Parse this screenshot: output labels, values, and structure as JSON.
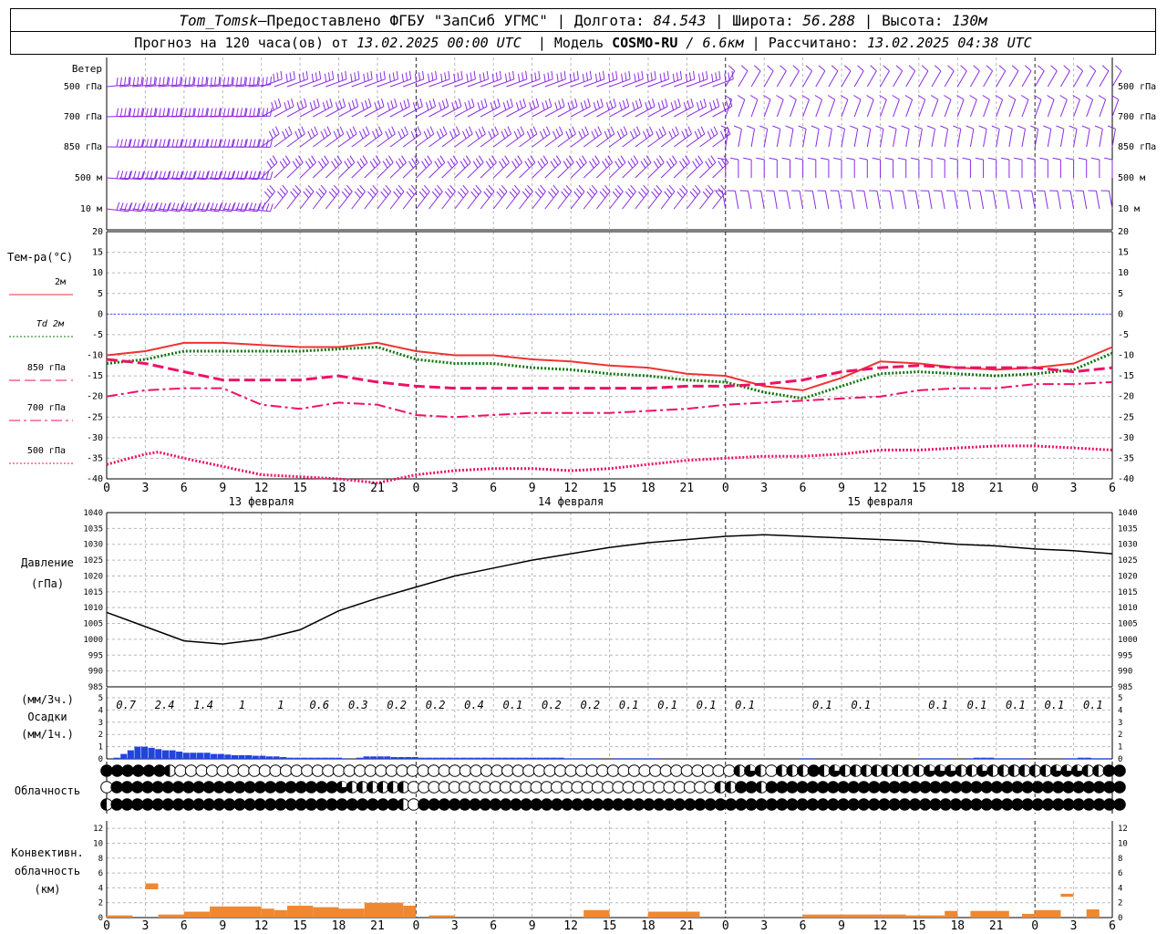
{
  "header": {
    "station": "Tom_Tomsk",
    "dash": " – ",
    "provider": "Предоставлено ФГБУ \"ЗапСиб УГМС\"",
    "lon_label": "Долгота:",
    "lon": "84.543",
    "lat_label": "Широта:",
    "lat": "56.288",
    "alt_label": "Высота:",
    "alt": "130м",
    "forecast_label": "Прогноз на 120 часа(ов) от",
    "forecast_start": "13.02.2025 00:00 UTC",
    "model_label": "Модель",
    "model": "COSMO-RU",
    "resolution": "/ 6.6км",
    "computed_label": "Рассчитано:",
    "computed": "13.02.2025 04:38 UTC",
    "sep": "|"
  },
  "time_axis": {
    "hour_labels": [
      "0",
      "3",
      "6",
      "9",
      "12",
      "15",
      "18",
      "21",
      "0",
      "3",
      "6",
      "9",
      "12",
      "15",
      "18",
      "21",
      "0",
      "3",
      "6",
      "9",
      "12",
      "15",
      "18",
      "21",
      "0",
      "3",
      "6"
    ],
    "day_labels": [
      "13 февраля",
      "14 февраля",
      "15 февраля"
    ]
  },
  "wind": {
    "title": "Ветер",
    "levels": [
      "500 гПа",
      "700 гПа",
      "850 гПа",
      "500 м",
      "10  м"
    ],
    "barb_color": "#8a2be2"
  },
  "temperature": {
    "chart_data": {
      "type": "line",
      "title": "Тем-ра(°C)",
      "x_unit": "hours",
      "y_ticks": [
        20,
        15,
        10,
        5,
        0,
        -5,
        -10,
        -15,
        -20,
        -25,
        -30,
        -35,
        -40
      ],
      "ylim": [
        -40,
        20
      ],
      "grid": true,
      "series": [
        {
          "name": "2м",
          "color": "#ee3333",
          "style": "solid",
          "x": [
            0,
            3,
            6,
            9,
            12,
            15,
            18,
            21,
            24,
            27,
            30,
            33,
            36,
            39,
            42,
            45,
            48,
            51,
            54,
            57,
            60,
            63,
            66,
            69,
            72,
            75,
            78
          ],
          "values": [
            -10,
            -9,
            -7,
            -7,
            -7.5,
            -8,
            -8,
            -7,
            -9,
            -10,
            -10,
            -11,
            -11.5,
            -12.5,
            -13,
            -14.5,
            -15,
            -17.5,
            -18.5,
            -15.5,
            -11.5,
            -12,
            -13,
            -13.5,
            -13,
            -12,
            -8
          ]
        },
        {
          "name": "Td  2м",
          "color": "#117711",
          "style": "dotted",
          "x": [
            0,
            3,
            6,
            9,
            12,
            15,
            18,
            21,
            24,
            27,
            30,
            33,
            36,
            39,
            42,
            45,
            48,
            51,
            54,
            57,
            60,
            63,
            66,
            69,
            72,
            75,
            78
          ],
          "values": [
            -12,
            -11,
            -9,
            -9,
            -9,
            -9,
            -8.5,
            -8,
            -11,
            -12,
            -12,
            -13,
            -13.5,
            -14.5,
            -15,
            -16,
            -16.5,
            -19,
            -20.5,
            -17.5,
            -14.5,
            -14,
            -14.5,
            -15,
            -14.5,
            -13.5,
            -9.5
          ]
        },
        {
          "name": "850 гПа",
          "color": "#ee1166",
          "style": "dashed",
          "x": [
            0,
            3,
            6,
            9,
            12,
            15,
            18,
            21,
            24,
            27,
            30,
            33,
            36,
            39,
            42,
            45,
            48,
            51,
            54,
            57,
            60,
            63,
            66,
            69,
            72,
            75,
            78
          ],
          "values": [
            -11,
            -12,
            -14,
            -16,
            -16,
            -16,
            -15,
            -16.5,
            -17.5,
            -18,
            -18,
            -18,
            -18,
            -18,
            -18,
            -17.5,
            -17.5,
            -17,
            -16,
            -14,
            -13,
            -12.5,
            -13,
            -13,
            -13,
            -14,
            -13
          ]
        },
        {
          "name": "700 гПа",
          "color": "#ee1166",
          "style": "dashdot",
          "x": [
            0,
            3,
            6,
            9,
            12,
            15,
            18,
            21,
            24,
            27,
            30,
            33,
            36,
            39,
            42,
            45,
            48,
            51,
            54,
            57,
            60,
            63,
            66,
            69,
            72,
            75,
            78
          ],
          "values": [
            -20,
            -18.5,
            -18,
            -18,
            -22,
            -23,
            -21.5,
            -22,
            -24.5,
            -25,
            -24.5,
            -24,
            -24,
            -24,
            -23.5,
            -23,
            -22,
            -21.5,
            -21,
            -20.5,
            -20,
            -18.5,
            -18,
            -18,
            -17,
            -17,
            -16.5
          ]
        },
        {
          "name": "500 гПа",
          "color": "#ee1166",
          "style": "dotted",
          "x": [
            0,
            3,
            4,
            6,
            9,
            12,
            15,
            18,
            21,
            24,
            27,
            30,
            33,
            36,
            39,
            42,
            45,
            48,
            51,
            54,
            57,
            60,
            63,
            66,
            69,
            72,
            75,
            78
          ],
          "values": [
            -36.5,
            -34,
            -33.5,
            -35,
            -37,
            -39,
            -39.5,
            -40,
            -41,
            -39,
            -38,
            -37.5,
            -37.5,
            -38,
            -37.5,
            -36.5,
            -35.5,
            -35,
            -34.5,
            -34.5,
            -34,
            -33,
            -33,
            -32.5,
            -32,
            -32,
            -32.5,
            -33
          ]
        }
      ]
    }
  },
  "pressure": {
    "chart_data": {
      "type": "line",
      "title": "Давление",
      "ylabel": "(гПа)",
      "y_ticks": [
        1040,
        1035,
        1030,
        1025,
        1020,
        1015,
        1010,
        1005,
        1000,
        995,
        990,
        985
      ],
      "ylim": [
        985,
        1040
      ],
      "grid": true,
      "series": [
        {
          "color": "#000000",
          "x": [
            0,
            3,
            6,
            9,
            12,
            15,
            18,
            21,
            24,
            27,
            30,
            33,
            36,
            39,
            42,
            45,
            48,
            51,
            54,
            57,
            60,
            63,
            66,
            69,
            72,
            75,
            78
          ],
          "values": [
            1008.5,
            1004,
            999.5,
            998.5,
            1000,
            1003,
            1009,
            1013,
            1016.5,
            1020,
            1022.5,
            1025,
            1027,
            1029,
            1030.5,
            1031.5,
            1032.5,
            1033,
            1032.5,
            1032,
            1031.5,
            1031,
            1030,
            1029.5,
            1028.5,
            1028,
            1027
          ]
        }
      ]
    }
  },
  "precip": {
    "chart_data": {
      "type": "bar",
      "title": "Осадки",
      "ylabel_top": "(мм/3ч.)",
      "ylabel_bottom": "(мм/1ч.)",
      "y_ticks": [
        5,
        4,
        3,
        2,
        1,
        0
      ],
      "ylim": [
        0,
        5
      ],
      "bar_color": "#2244dd",
      "hourly_values": [
        0,
        0.1,
        0.4,
        0.7,
        1,
        1,
        0.9,
        0.8,
        0.7,
        0.7,
        0.6,
        0.5,
        0.5,
        0.5,
        0.5,
        0.4,
        0.4,
        0.35,
        0.3,
        0.3,
        0.3,
        0.25,
        0.25,
        0.2,
        0.2,
        0.15,
        0.1,
        0.1,
        0.1,
        0.1,
        0.1,
        0.1,
        0.1,
        0.1,
        0.05,
        0,
        0.1,
        0.2,
        0.2,
        0.2,
        0.2,
        0.15,
        0.15,
        0.15,
        0.15,
        0.1,
        0.1,
        0.1,
        0.1,
        0.1,
        0.1,
        0.1,
        0.1,
        0.1,
        0.1,
        0.1,
        0.1,
        0.1,
        0.1,
        0.1,
        0.1,
        0.1,
        0.1,
        0.1,
        0.1,
        0.1,
        0.05,
        0.05,
        0.05,
        0.05,
        0.05,
        0,
        0,
        0.05,
        0.05,
        0.05,
        0.05,
        0.05,
        0.05,
        0.05,
        0,
        0,
        0,
        0,
        0,
        0,
        0,
        0,
        0,
        0,
        0,
        0,
        0,
        0,
        0,
        0,
        0,
        0,
        0,
        0,
        0.05,
        0.05,
        0,
        0,
        0,
        0,
        0,
        0,
        0,
        0,
        0,
        0,
        0,
        0,
        0,
        0,
        0,
        0.05,
        0.05,
        0.05,
        0.05,
        0.05,
        0,
        0,
        0.05,
        0.1,
        0.1,
        0.1,
        0.05,
        0.05,
        0.05,
        0.05,
        0.05,
        0,
        0,
        0,
        0,
        0,
        0.05,
        0.05,
        0.1,
        0.1,
        0.05,
        0.05,
        0.05
      ],
      "sums_3h": [
        {
          "x": 1.5,
          "value": "0.7"
        },
        {
          "x": 4.5,
          "value": "2.4"
        },
        {
          "x": 7.5,
          "value": "1.4"
        },
        {
          "x": 10.5,
          "value": "1"
        },
        {
          "x": 13.5,
          "value": "1"
        },
        {
          "x": 16.5,
          "value": "0.6"
        },
        {
          "x": 19.5,
          "value": "0.3"
        },
        {
          "x": 22.5,
          "value": "0.2"
        },
        {
          "x": 25.5,
          "value": "0.2"
        },
        {
          "x": 28.5,
          "value": "0.4"
        },
        {
          "x": 31.5,
          "value": "0.1"
        },
        {
          "x": 34.5,
          "value": "0.2"
        },
        {
          "x": 37.5,
          "value": "0.2"
        },
        {
          "x": 40.5,
          "value": "0.1"
        },
        {
          "x": 43.5,
          "value": "0.1"
        },
        {
          "x": 46.5,
          "value": "0.1"
        },
        {
          "x": 49.5,
          "value": "0.1"
        },
        {
          "x": 55.5,
          "value": "0.1"
        },
        {
          "x": 58.5,
          "value": "0.1"
        },
        {
          "x": 64.5,
          "value": "0.1"
        },
        {
          "x": 67.5,
          "value": "0.1"
        },
        {
          "x": 70.5,
          "value": "0.1"
        },
        {
          "x": 73.5,
          "value": "0.1"
        },
        {
          "x": 76.5,
          "value": "0.1"
        }
      ]
    }
  },
  "cloud": {
    "title": "Облачность",
    "rows": [
      "FFFFFFHeeeeeeeeeeeeeeeeeeeeeeeeeeeeeeeeeeeeeeeeeeeeeeeeeeeeeHTHeHHHFHTHHHHHHHHTTTHHTHHHHHHTTTHHFF",
      "eFFFFFFFFFFFFFFFFFFFFFFTHHHHHHeeeeeeeeeeeeeeeeeeeeeeeeeeeeeeHHFFHFFFFFFFFFFFFFFFFFFFFFFFFFFFFFFFFFFF",
      "HFFFFFFFFFFFFFFFFFFFFFFFFFFFFHeFFFFFFFFFFFFFFFFFFFFFFFFFFFFFFFFFFFFFFFFFFFFFFFFFFFFFFFFFFFFFFFFFFFFF"
    ]
  },
  "convective": {
    "chart_data": {
      "type": "bar",
      "title": "Конвективн.",
      "title2": "облачность",
      "ylabel": "(км)",
      "y_ticks": [
        12,
        10,
        8,
        6,
        4,
        2,
        0
      ],
      "ylim": [
        0,
        13
      ],
      "bar_color": "#ee8833",
      "segments": [
        {
          "x0": 0,
          "x1": 2,
          "base": 0,
          "top": 0.3
        },
        {
          "x0": 3,
          "x1": 4,
          "base": 3.8,
          "top": 4.6
        },
        {
          "x0": 4,
          "x1": 6,
          "base": 0,
          "top": 0.4
        },
        {
          "x0": 6,
          "x1": 8,
          "base": 0,
          "top": 0.8
        },
        {
          "x0": 8,
          "x1": 12,
          "base": 0,
          "top": 1.5
        },
        {
          "x0": 12,
          "x1": 13,
          "base": 0,
          "top": 1.2
        },
        {
          "x0": 13,
          "x1": 14,
          "base": 0,
          "top": 1.0
        },
        {
          "x0": 14,
          "x1": 16,
          "base": 0,
          "top": 1.6
        },
        {
          "x0": 16,
          "x1": 18,
          "base": 0,
          "top": 1.4
        },
        {
          "x0": 18,
          "x1": 20,
          "base": 0,
          "top": 1.2
        },
        {
          "x0": 20,
          "x1": 23,
          "base": 0,
          "top": 2.0
        },
        {
          "x0": 23,
          "x1": 24,
          "base": 0,
          "top": 1.6
        },
        {
          "x0": 25,
          "x1": 27,
          "base": 0,
          "top": 0.3
        },
        {
          "x0": 37,
          "x1": 39,
          "base": 0,
          "top": 1.0
        },
        {
          "x0": 42,
          "x1": 46,
          "base": 0,
          "top": 0.8
        },
        {
          "x0": 54,
          "x1": 62,
          "base": 0,
          "top": 0.4
        },
        {
          "x0": 62,
          "x1": 65,
          "base": 0,
          "top": 0.3
        },
        {
          "x0": 65,
          "x1": 66,
          "base": 0,
          "top": 0.9
        },
        {
          "x0": 67,
          "x1": 70,
          "base": 0,
          "top": 0.9
        },
        {
          "x0": 71,
          "x1": 72,
          "base": 0,
          "top": 0.5
        },
        {
          "x0": 72,
          "x1": 74,
          "base": 0,
          "top": 1.0
        },
        {
          "x0": 74,
          "x1": 75,
          "base": 2.8,
          "top": 3.2
        },
        {
          "x0": 76,
          "x1": 77,
          "base": 0,
          "top": 1.1
        }
      ]
    }
  }
}
